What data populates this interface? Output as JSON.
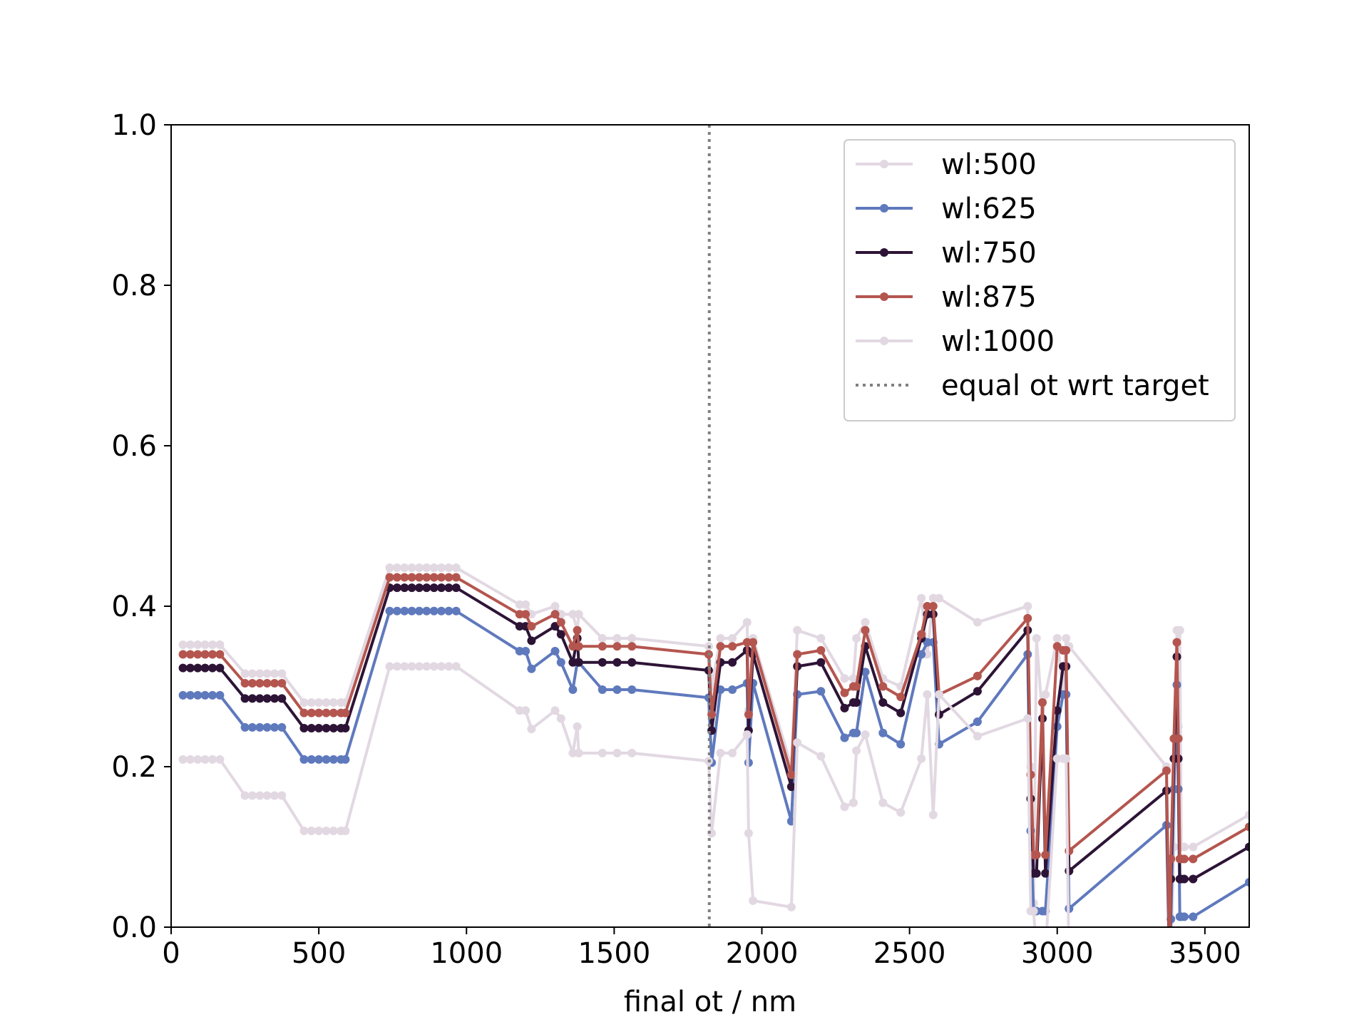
{
  "chart_data": {
    "type": "line",
    "title": "",
    "xlabel": "final ot / nm",
    "ylabel": "",
    "xlim": [
      0,
      3650
    ],
    "ylim": [
      0.0,
      1.0
    ],
    "xticks": [
      0,
      500,
      1000,
      1500,
      2000,
      2500,
      3000,
      3500
    ],
    "yticks": [
      0.0,
      0.2,
      0.4,
      0.6,
      0.8,
      1.0
    ],
    "xtick_labels": [
      "0",
      "500",
      "1000",
      "1500",
      "2000",
      "2500",
      "3000",
      "3500"
    ],
    "ytick_labels": [
      "0.0",
      "0.2",
      "0.4",
      "0.6",
      "0.8",
      "1.0"
    ],
    "grid": false,
    "legend_position": "top-right",
    "reference_line": {
      "name": "equal ot wrt target",
      "x": 1822,
      "style": "dotted",
      "color": "#808080"
    },
    "x": [
      40,
      65,
      90,
      115,
      140,
      165,
      250,
      275,
      300,
      325,
      350,
      375,
      450,
      475,
      500,
      525,
      550,
      575,
      590,
      740,
      765,
      790,
      815,
      840,
      865,
      890,
      915,
      940,
      965,
      1180,
      1200,
      1220,
      1300,
      1320,
      1360,
      1375,
      1380,
      1460,
      1510,
      1560,
      1820,
      1830,
      1860,
      1900,
      1950,
      1955,
      1970,
      2100,
      2120,
      2200,
      2280,
      2310,
      2320,
      2350,
      2410,
      2470,
      2540,
      2560,
      2580,
      2600,
      2730,
      2900,
      2910,
      2920,
      2930,
      2950,
      2960,
      3000,
      3020,
      3030,
      3040,
      3370,
      3380,
      3385,
      3395,
      3405,
      3410,
      3415,
      3420,
      3430,
      3460,
      3650
    ],
    "series": [
      {
        "name": "wl:500",
        "color": "#e2d8e2",
        "values": [
          0.352,
          0.352,
          0.352,
          0.352,
          0.352,
          0.352,
          0.316,
          0.316,
          0.316,
          0.316,
          0.316,
          0.316,
          0.28,
          0.28,
          0.28,
          0.28,
          0.28,
          0.28,
          0.28,
          0.448,
          0.448,
          0.448,
          0.448,
          0.448,
          0.448,
          0.448,
          0.448,
          0.448,
          0.448,
          0.402,
          0.402,
          0.39,
          0.4,
          0.39,
          0.39,
          0.37,
          0.39,
          0.36,
          0.36,
          0.36,
          0.35,
          0.3,
          0.36,
          0.36,
          0.38,
          0.27,
          0.36,
          0.2,
          0.37,
          0.36,
          0.31,
          0.31,
          0.36,
          0.38,
          0.31,
          0.3,
          0.41,
          0.34,
          0.41,
          0.41,
          0.38,
          0.4,
          0.2,
          0.03,
          0.36,
          0.26,
          0.29,
          0.36,
          0.29,
          0.36,
          0.35,
          0.2,
          -0.05,
          -0.04,
          0.1,
          0.37,
          0.25,
          0.37,
          0.1,
          0.1,
          0.1,
          0.14
        ]
      },
      {
        "name": "wl:625",
        "color": "#5f79bd",
        "values": [
          0.289,
          0.289,
          0.289,
          0.289,
          0.289,
          0.289,
          0.249,
          0.249,
          0.249,
          0.249,
          0.249,
          0.249,
          0.209,
          0.209,
          0.209,
          0.209,
          0.209,
          0.209,
          0.209,
          0.394,
          0.394,
          0.394,
          0.394,
          0.394,
          0.394,
          0.394,
          0.394,
          0.394,
          0.394,
          0.344,
          0.344,
          0.322,
          0.344,
          0.33,
          0.296,
          0.33,
          0.33,
          0.296,
          0.296,
          0.296,
          0.286,
          0.205,
          0.296,
          0.296,
          0.304,
          0.205,
          0.304,
          0.132,
          0.29,
          0.294,
          0.236,
          0.242,
          0.242,
          0.318,
          0.242,
          0.228,
          0.34,
          0.355,
          0.355,
          0.228,
          0.256,
          0.34,
          0.12,
          0.02,
          0.02,
          0.02,
          0.02,
          0.25,
          0.29,
          0.29,
          0.023,
          0.127,
          -0.05,
          0.01,
          0.172,
          0.302,
          0.172,
          0.013,
          0.013,
          0.013,
          0.013,
          0.056
        ]
      },
      {
        "name": "wl:750",
        "color": "#2d1436",
        "values": [
          0.323,
          0.323,
          0.323,
          0.323,
          0.323,
          0.323,
          0.285,
          0.285,
          0.285,
          0.285,
          0.285,
          0.285,
          0.248,
          0.248,
          0.248,
          0.248,
          0.248,
          0.248,
          0.248,
          0.423,
          0.423,
          0.423,
          0.423,
          0.423,
          0.423,
          0.423,
          0.423,
          0.423,
          0.423,
          0.375,
          0.375,
          0.357,
          0.375,
          0.365,
          0.33,
          0.36,
          0.33,
          0.33,
          0.33,
          0.33,
          0.32,
          0.245,
          0.33,
          0.33,
          0.345,
          0.245,
          0.34,
          0.175,
          0.325,
          0.33,
          0.273,
          0.28,
          0.28,
          0.35,
          0.28,
          0.267,
          0.36,
          0.39,
          0.39,
          0.265,
          0.294,
          0.37,
          0.16,
          0.067,
          0.067,
          0.26,
          0.067,
          0.27,
          0.325,
          0.325,
          0.07,
          0.17,
          -0.05,
          0.06,
          0.21,
          0.337,
          0.21,
          0.06,
          0.06,
          0.06,
          0.06,
          0.1
        ]
      },
      {
        "name": "wl:875",
        "color": "#b4564f",
        "values": [
          0.34,
          0.34,
          0.34,
          0.34,
          0.34,
          0.34,
          0.304,
          0.304,
          0.304,
          0.304,
          0.304,
          0.304,
          0.267,
          0.267,
          0.267,
          0.267,
          0.267,
          0.267,
          0.267,
          0.436,
          0.436,
          0.436,
          0.436,
          0.436,
          0.436,
          0.436,
          0.436,
          0.436,
          0.436,
          0.39,
          0.39,
          0.375,
          0.39,
          0.38,
          0.35,
          0.37,
          0.35,
          0.35,
          0.35,
          0.35,
          0.34,
          0.265,
          0.35,
          0.35,
          0.355,
          0.265,
          0.355,
          0.19,
          0.34,
          0.345,
          0.292,
          0.3,
          0.3,
          0.37,
          0.3,
          0.287,
          0.365,
          0.4,
          0.4,
          0.29,
          0.313,
          0.385,
          0.19,
          0.09,
          0.09,
          0.28,
          0.09,
          0.35,
          0.345,
          0.345,
          0.095,
          0.195,
          -0.05,
          0.085,
          0.235,
          0.355,
          0.235,
          0.085,
          0.085,
          0.085,
          0.085,
          0.125
        ]
      },
      {
        "name": "wl:1000",
        "color": "#e2d8e2",
        "values": [
          0.209,
          0.209,
          0.209,
          0.209,
          0.209,
          0.209,
          0.164,
          0.164,
          0.164,
          0.164,
          0.164,
          0.164,
          0.12,
          0.12,
          0.12,
          0.12,
          0.12,
          0.12,
          0.12,
          0.325,
          0.325,
          0.325,
          0.325,
          0.325,
          0.325,
          0.325,
          0.325,
          0.325,
          0.325,
          0.27,
          0.27,
          0.247,
          0.27,
          0.26,
          0.217,
          0.25,
          0.217,
          0.217,
          0.217,
          0.217,
          0.207,
          0.117,
          0.217,
          0.217,
          0.24,
          0.117,
          0.033,
          0.025,
          0.23,
          0.213,
          0.15,
          0.155,
          0.22,
          0.24,
          0.155,
          0.143,
          0.21,
          0.29,
          0.14,
          0.29,
          0.238,
          0.26,
          0.02,
          0.02,
          -0.03,
          -0.03,
          -0.03,
          0.21,
          0.21,
          0.21,
          -0.05,
          -0.05,
          -0.05,
          -0.05,
          -0.05,
          -0.05,
          -0.05,
          -0.05,
          -0.05,
          -0.05,
          -0.05,
          -0.05
        ]
      }
    ]
  }
}
